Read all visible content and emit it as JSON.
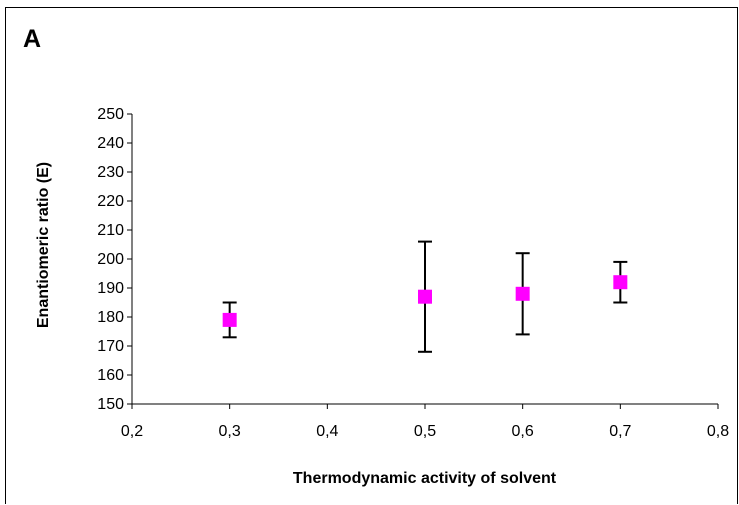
{
  "panel_label": "A",
  "chart_data": {
    "type": "scatter",
    "xlabel": "Thermodynamic activity of solvent",
    "ylabel": "Enantiomeric ratio (E)",
    "xlim": [
      0.2,
      0.8
    ],
    "ylim": [
      150,
      250
    ],
    "x_ticks": [
      "0,2",
      "0,3",
      "0,4",
      "0,5",
      "0,6",
      "0,7",
      "0,8"
    ],
    "y_ticks": [
      "150",
      "160",
      "170",
      "180",
      "190",
      "200",
      "210",
      "220",
      "230",
      "240",
      "250"
    ],
    "grid": false,
    "marker_color": "#ff00ff",
    "error_bar_color": "#000000",
    "points": [
      {
        "x": 0.3,
        "y": 179,
        "err_low": 173,
        "err_high": 185
      },
      {
        "x": 0.5,
        "y": 187,
        "err_low": 168,
        "err_high": 206
      },
      {
        "x": 0.6,
        "y": 188,
        "err_low": 174,
        "err_high": 202
      },
      {
        "x": 0.7,
        "y": 192,
        "err_low": 185,
        "err_high": 199
      }
    ]
  }
}
